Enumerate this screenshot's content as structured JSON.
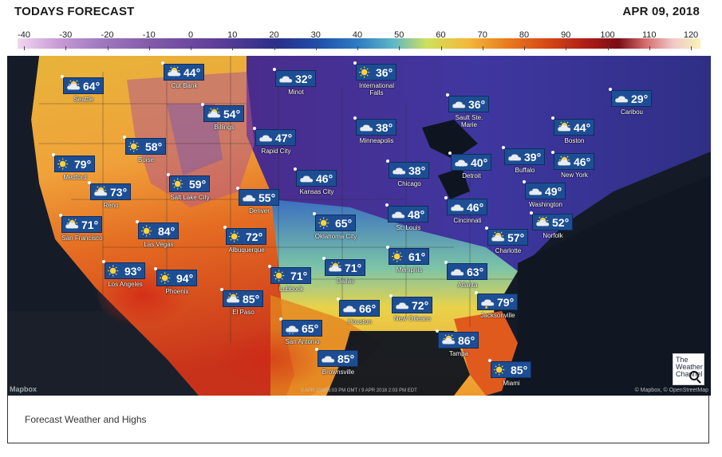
{
  "header": {
    "title": "TODAYS FORECAST",
    "date": "APR 09, 2018"
  },
  "scale": {
    "ticks": [
      "-40",
      "-30",
      "-20",
      "-10",
      "0",
      "10",
      "20",
      "30",
      "40",
      "50",
      "60",
      "70",
      "80",
      "90",
      "100",
      "110",
      "120"
    ]
  },
  "cities": [
    {
      "name": "Seattle",
      "temp": "64°",
      "icon": "partly-cloudy-icon"
    },
    {
      "name": "Cut Bank",
      "temp": "44°",
      "icon": "partly-cloudy-icon"
    },
    {
      "name": "Minot",
      "temp": "32°",
      "icon": "cloudy-icon"
    },
    {
      "name": "International Falls",
      "temp": "36°",
      "icon": "sunny-icon"
    },
    {
      "name": "Sault Ste. Marie",
      "temp": "36°",
      "icon": "cloudy-icon"
    },
    {
      "name": "Caribou",
      "temp": "29°",
      "icon": "cloudy-icon"
    },
    {
      "name": "Billings",
      "temp": "54°",
      "icon": "partly-cloudy-icon"
    },
    {
      "name": "Minneapolis",
      "temp": "38°",
      "icon": "cloudy-icon"
    },
    {
      "name": "Boston",
      "temp": "44°",
      "icon": "partly-cloudy-icon"
    },
    {
      "name": "Boise",
      "temp": "58°",
      "icon": "sunny-icon"
    },
    {
      "name": "Rapid City",
      "temp": "47°",
      "icon": "cloudy-icon"
    },
    {
      "name": "Detroit",
      "temp": "40°",
      "icon": "snow-icon"
    },
    {
      "name": "Buffalo",
      "temp": "39°",
      "icon": "cloudy-icon"
    },
    {
      "name": "New York",
      "temp": "46°",
      "icon": "partly-cloudy-icon"
    },
    {
      "name": "Medford",
      "temp": "79°",
      "icon": "sunny-icon"
    },
    {
      "name": "Salt Lake City",
      "temp": "59°",
      "icon": "sunny-icon"
    },
    {
      "name": "Kansas City",
      "temp": "46°",
      "icon": "cloudy-icon"
    },
    {
      "name": "Chicago",
      "temp": "38°",
      "icon": "snow-icon"
    },
    {
      "name": "Reno",
      "temp": "73°",
      "icon": "partly-cloudy-icon"
    },
    {
      "name": "Denver",
      "temp": "55°",
      "icon": "cloudy-icon"
    },
    {
      "name": "Washington",
      "temp": "49°",
      "icon": "cloudy-icon"
    },
    {
      "name": "Cincinnati",
      "temp": "46°",
      "icon": "cloudy-icon"
    },
    {
      "name": "St. Louis",
      "temp": "48°",
      "icon": "cloudy-icon"
    },
    {
      "name": "San Francisco",
      "temp": "71°",
      "icon": "partly-cloudy-icon"
    },
    {
      "name": "Oklahoma City",
      "temp": "65°",
      "icon": "sunny-icon"
    },
    {
      "name": "Norfolk",
      "temp": "52°",
      "icon": "partly-cloudy-icon"
    },
    {
      "name": "Las Vegas",
      "temp": "84°",
      "icon": "sunny-icon"
    },
    {
      "name": "Albuquerque",
      "temp": "72°",
      "icon": "sunny-icon"
    },
    {
      "name": "Charlotte",
      "temp": "57°",
      "icon": "partly-cloudy-icon"
    },
    {
      "name": "Memphis",
      "temp": "61°",
      "icon": "sunny-icon"
    },
    {
      "name": "Dallas",
      "temp": "71°",
      "icon": "partly-cloudy-icon"
    },
    {
      "name": "Lubbock",
      "temp": "71°",
      "icon": "sunny-icon"
    },
    {
      "name": "Atlanta",
      "temp": "63°",
      "icon": "cloudy-icon"
    },
    {
      "name": "Los Angeles",
      "temp": "93°",
      "icon": "sunny-icon"
    },
    {
      "name": "Phoenix",
      "temp": "94°",
      "icon": "sunny-icon"
    },
    {
      "name": "El Paso",
      "temp": "85°",
      "icon": "partly-cloudy-icon"
    },
    {
      "name": "Houston",
      "temp": "66°",
      "icon": "cloudy-icon"
    },
    {
      "name": "New Orleans",
      "temp": "72°",
      "icon": "cloudy-icon"
    },
    {
      "name": "Jacksonville",
      "temp": "79°",
      "icon": "thunderstorm-icon"
    },
    {
      "name": "San Antonio",
      "temp": "65°",
      "icon": "rain-icon"
    },
    {
      "name": "Tampa",
      "temp": "86°",
      "icon": "partly-cloudy-icon"
    },
    {
      "name": "Brownsville",
      "temp": "85°",
      "icon": "cloudy-icon"
    },
    {
      "name": "Miami",
      "temp": "85°",
      "icon": "sunny-icon"
    }
  ],
  "map": {
    "attribution_left": "Mapbox",
    "timestamp": "9 APR 2018 6:03 PM GMT / 9 APR 2018 2:03 PM EDT",
    "attribution_right": "© Mapbox, © OpenStreetMap",
    "logo_text": "The Weather Channel"
  },
  "caption": "Forecast Weather and Highs"
}
